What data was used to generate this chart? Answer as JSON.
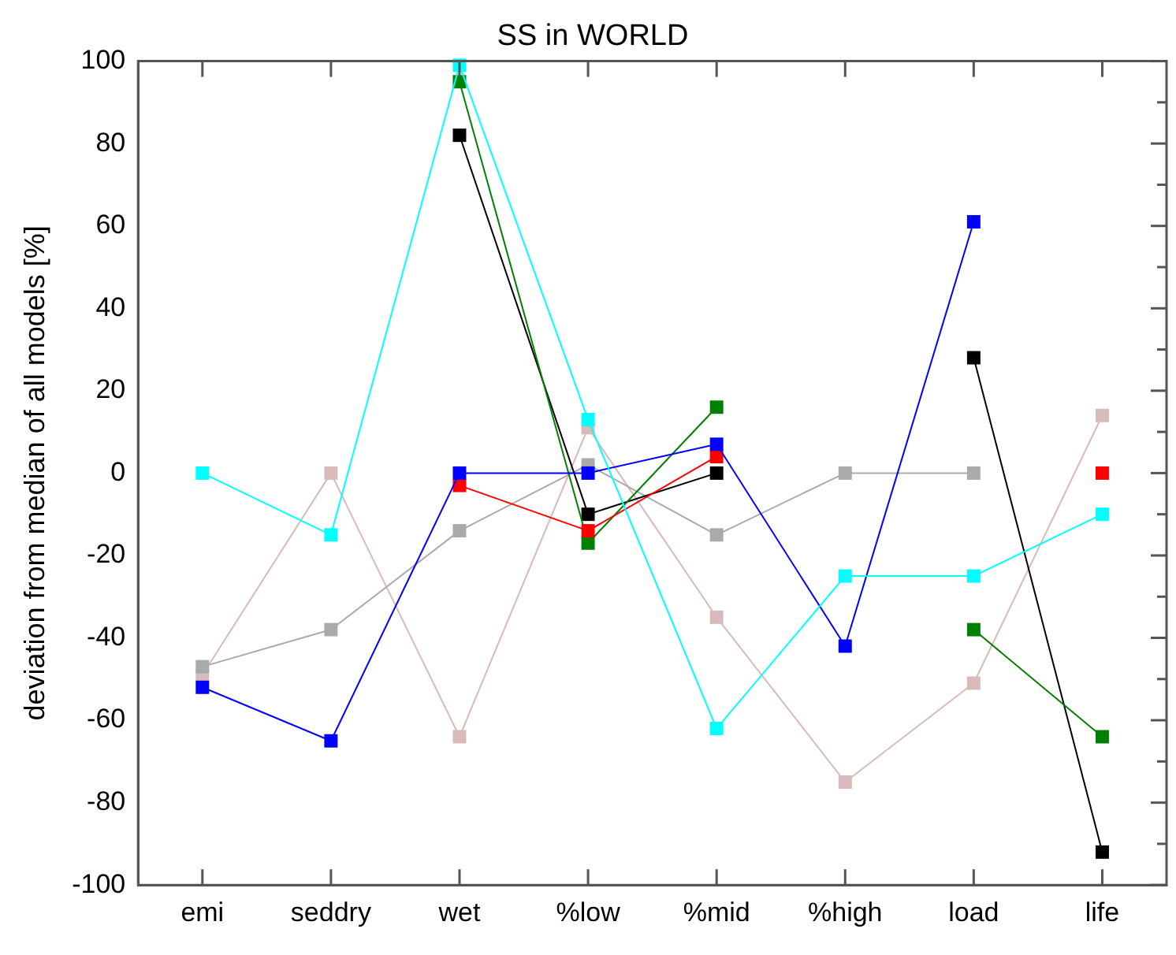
{
  "chart_data": {
    "type": "line",
    "title": "SS in WORLD",
    "ylabel": "deviation from median of all models [%]",
    "categories": [
      "emi",
      "seddry",
      "wet",
      "%low",
      "%mid",
      "%high",
      "load",
      "life"
    ],
    "series": [
      {
        "color": "#00ffff",
        "values": [
          0,
          -15,
          99,
          13,
          -62,
          -25,
          -25,
          -10
        ]
      },
      {
        "color": "#0000ff",
        "values": [
          -52,
          -65,
          0,
          0,
          7,
          -42,
          61,
          null
        ]
      },
      {
        "color": "#ff0000",
        "values": [
          null,
          null,
          -3,
          -14,
          4,
          null,
          null,
          0
        ]
      },
      {
        "color": "#008000",
        "values": [
          null,
          null,
          95,
          -17,
          16,
          null,
          -38,
          -64
        ]
      },
      {
        "color": "#000000",
        "values": [
          null,
          null,
          82,
          -10,
          0,
          null,
          28,
          -92
        ]
      },
      {
        "color": "#aaaaaa",
        "values": [
          -47,
          -38,
          -14,
          2,
          -15,
          0,
          0,
          null
        ]
      },
      {
        "color": "#d8baba",
        "values": [
          -49,
          0,
          -64,
          11,
          -35,
          -75,
          -51,
          14
        ]
      }
    ],
    "ylim": [
      -100,
      100
    ],
    "yticks": [
      -100,
      {
        "value": -90,
        "label": null
      },
      -80,
      {
        "value": -70,
        "label": null
      },
      -60,
      {
        "value": -50,
        "label": null
      },
      -40,
      {
        "value": -30,
        "label": null
      },
      -20,
      {
        "value": -10,
        "label": null
      },
      0,
      {
        "value": 10,
        "label": null
      },
      20,
      {
        "value": 30,
        "label": null
      },
      40,
      {
        "value": 50,
        "label": null
      },
      60,
      {
        "value": 70,
        "label": null
      },
      80,
      {
        "value": 90,
        "label": null
      },
      100
    ],
    "grid": false,
    "legend": false,
    "marker": "square",
    "line_style": "solid"
  }
}
